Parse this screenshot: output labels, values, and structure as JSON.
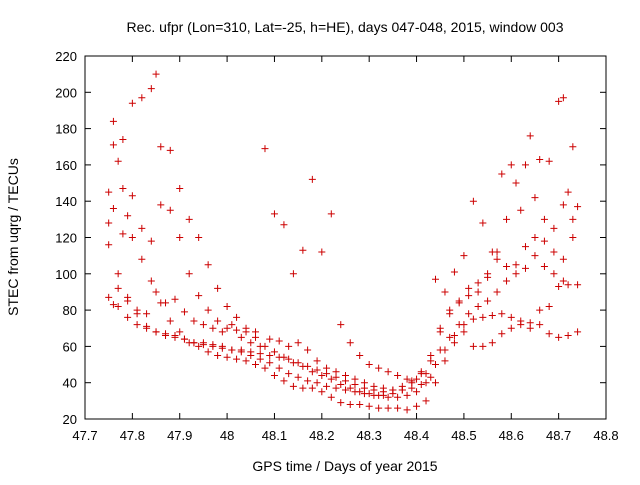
{
  "chart_data": {
    "type": "scatter",
    "title": "Rec. ufpr (Lon=310, Lat=-25, h=HE), days 047-048, 2015, window 003",
    "xlabel": "GPS time / Days of year 2015",
    "ylabel": "STEC from uqrg / TECUs",
    "xlim": [
      47.7,
      48.8
    ],
    "ylim": [
      20,
      220
    ],
    "xticks": [
      "47.7",
      "47.8",
      "47.9",
      "48",
      "48.1",
      "48.2",
      "48.3",
      "48.4",
      "48.5",
      "48.6",
      "48.7",
      "48.8"
    ],
    "yticks": [
      "20",
      "40",
      "60",
      "80",
      "100",
      "120",
      "140",
      "160",
      "180",
      "200",
      "220"
    ],
    "grid": false,
    "marker": "+",
    "color": "#cc0000",
    "series": [
      {
        "points": [
          [
            47.75,
            145
          ],
          [
            47.76,
            171
          ],
          [
            47.77,
            162
          ],
          [
            47.78,
            147
          ],
          [
            47.79,
            132
          ],
          [
            47.8,
            120
          ],
          [
            47.82,
            108
          ],
          [
            47.84,
            96
          ],
          [
            47.86,
            84
          ],
          [
            47.88,
            74
          ],
          [
            47.9,
            68
          ],
          [
            47.92,
            62
          ],
          [
            47.94,
            60
          ],
          [
            47.96,
            57
          ],
          [
            47.98,
            55
          ],
          [
            48.0,
            54
          ],
          [
            48.02,
            53
          ],
          [
            48.04,
            52
          ],
          [
            48.06,
            50
          ],
          [
            48.08,
            48
          ],
          [
            48.1,
            44
          ],
          [
            48.12,
            41
          ],
          [
            48.14,
            38
          ],
          [
            48.16,
            37
          ],
          [
            48.18,
            37
          ],
          [
            48.2,
            35
          ],
          [
            48.22,
            32
          ],
          [
            48.24,
            29
          ],
          [
            48.26,
            28
          ],
          [
            48.28,
            28
          ],
          [
            48.3,
            27
          ],
          [
            48.32,
            26
          ],
          [
            48.34,
            26
          ],
          [
            48.36,
            26
          ],
          [
            48.38,
            25
          ],
          [
            48.4,
            27
          ],
          [
            48.42,
            30
          ],
          [
            48.44,
            40
          ],
          [
            48.46,
            52
          ],
          [
            48.48,
            62
          ],
          [
            48.5,
            68
          ],
          [
            48.52,
            60
          ],
          [
            48.54,
            60
          ],
          [
            48.56,
            62
          ],
          [
            48.58,
            67
          ],
          [
            48.6,
            70
          ],
          [
            48.62,
            72
          ],
          [
            48.64,
            70
          ],
          [
            48.66,
            72
          ],
          [
            48.68,
            67
          ],
          [
            48.7,
            65
          ],
          [
            48.72,
            66
          ],
          [
            48.74,
            68
          ],
          [
            47.75,
            128
          ],
          [
            47.76,
            184
          ],
          [
            47.78,
            174
          ],
          [
            47.8,
            194
          ],
          [
            47.82,
            197
          ],
          [
            47.84,
            202
          ],
          [
            47.85,
            210
          ],
          [
            47.86,
            170
          ],
          [
            47.88,
            168
          ],
          [
            47.9,
            147
          ],
          [
            47.92,
            130
          ],
          [
            47.94,
            120
          ],
          [
            47.96,
            105
          ],
          [
            47.98,
            92
          ],
          [
            48.0,
            82
          ],
          [
            48.02,
            76
          ],
          [
            48.04,
            70
          ],
          [
            48.06,
            65
          ],
          [
            48.08,
            60
          ],
          [
            48.1,
            57
          ],
          [
            48.12,
            54
          ],
          [
            48.14,
            51
          ],
          [
            48.16,
            49
          ],
          [
            48.18,
            46
          ],
          [
            48.2,
            44
          ],
          [
            48.22,
            42
          ],
          [
            48.24,
            39
          ],
          [
            48.26,
            37
          ],
          [
            48.28,
            35
          ],
          [
            48.3,
            34
          ],
          [
            48.32,
            33
          ],
          [
            48.34,
            32
          ],
          [
            48.36,
            32
          ],
          [
            48.38,
            33
          ],
          [
            48.4,
            35
          ],
          [
            48.42,
            40
          ],
          [
            48.44,
            50
          ],
          [
            48.46,
            58
          ],
          [
            48.48,
            66
          ],
          [
            48.5,
            72
          ],
          [
            48.52,
            75
          ],
          [
            48.54,
            76
          ],
          [
            48.56,
            77
          ],
          [
            48.58,
            78
          ],
          [
            48.6,
            76
          ],
          [
            48.62,
            74
          ],
          [
            48.64,
            73
          ],
          [
            48.66,
            80
          ],
          [
            48.68,
            82
          ],
          [
            48.7,
            93
          ],
          [
            48.72,
            94
          ],
          [
            48.74,
            94
          ],
          [
            47.75,
            116
          ],
          [
            47.77,
            100
          ],
          [
            47.79,
            87
          ],
          [
            47.81,
            78
          ],
          [
            47.83,
            71
          ],
          [
            47.85,
            68
          ],
          [
            47.87,
            66
          ],
          [
            47.89,
            65
          ],
          [
            47.91,
            64
          ],
          [
            47.93,
            62
          ],
          [
            47.95,
            61
          ],
          [
            47.97,
            60
          ],
          [
            47.99,
            59
          ],
          [
            48.01,
            58
          ],
          [
            48.03,
            58
          ],
          [
            48.05,
            57
          ],
          [
            48.07,
            56
          ],
          [
            48.09,
            55
          ],
          [
            48.11,
            54
          ],
          [
            48.13,
            53
          ],
          [
            48.15,
            51
          ],
          [
            48.17,
            49
          ],
          [
            48.19,
            47
          ],
          [
            48.21,
            45
          ],
          [
            48.23,
            43
          ],
          [
            48.25,
            41
          ],
          [
            48.27,
            39
          ],
          [
            48.29,
            37
          ],
          [
            48.31,
            36
          ],
          [
            48.33,
            35
          ],
          [
            48.35,
            36
          ],
          [
            48.37,
            38
          ],
          [
            48.39,
            41
          ],
          [
            48.41,
            46
          ],
          [
            48.43,
            52
          ],
          [
            48.45,
            58
          ],
          [
            48.47,
            65
          ],
          [
            48.49,
            72
          ],
          [
            48.51,
            78
          ],
          [
            48.53,
            82
          ],
          [
            48.55,
            85
          ],
          [
            48.57,
            90
          ],
          [
            48.59,
            96
          ],
          [
            48.61,
            105
          ],
          [
            48.63,
            115
          ],
          [
            48.65,
            120
          ],
          [
            48.67,
            118
          ],
          [
            48.69,
            112
          ],
          [
            48.71,
            108
          ],
          [
            48.73,
            120
          ],
          [
            47.75,
            87
          ],
          [
            47.76,
            83
          ],
          [
            47.77,
            82
          ],
          [
            47.79,
            76
          ],
          [
            47.81,
            72
          ],
          [
            47.83,
            70
          ],
          [
            47.85,
            68
          ],
          [
            47.87,
            67
          ],
          [
            47.89,
            66
          ],
          [
            47.91,
            64
          ],
          [
            47.93,
            62
          ],
          [
            47.95,
            62
          ],
          [
            47.97,
            61
          ],
          [
            47.99,
            60
          ],
          [
            48.01,
            58
          ],
          [
            48.03,
            57
          ],
          [
            48.05,
            55
          ],
          [
            48.07,
            53
          ],
          [
            48.09,
            51
          ],
          [
            48.11,
            48
          ],
          [
            48.13,
            45
          ],
          [
            48.15,
            43
          ],
          [
            48.17,
            41
          ],
          [
            48.19,
            40
          ],
          [
            48.21,
            38
          ],
          [
            48.23,
            37
          ],
          [
            48.25,
            36
          ],
          [
            48.27,
            35
          ],
          [
            48.29,
            34
          ],
          [
            48.31,
            33
          ],
          [
            48.33,
            33
          ],
          [
            48.35,
            34
          ],
          [
            48.37,
            36
          ],
          [
            48.39,
            40
          ],
          [
            48.41,
            45
          ],
          [
            48.43,
            55
          ],
          [
            48.45,
            68
          ],
          [
            48.47,
            78
          ],
          [
            48.49,
            85
          ],
          [
            48.51,
            88
          ],
          [
            48.53,
            90
          ],
          [
            48.55,
            98
          ],
          [
            48.57,
            112
          ],
          [
            48.59,
            130
          ],
          [
            48.61,
            150
          ],
          [
            48.63,
            160
          ],
          [
            48.65,
            142
          ],
          [
            48.67,
            130
          ],
          [
            48.69,
            125
          ],
          [
            48.71,
            138
          ],
          [
            48.73,
            170
          ],
          [
            47.76,
            136
          ],
          [
            47.78,
            122
          ],
          [
            47.8,
            143
          ],
          [
            47.82,
            125
          ],
          [
            47.84,
            118
          ],
          [
            47.86,
            138
          ],
          [
            47.88,
            135
          ],
          [
            47.9,
            120
          ],
          [
            47.92,
            100
          ],
          [
            47.94,
            88
          ],
          [
            47.96,
            80
          ],
          [
            47.98,
            74
          ],
          [
            48.0,
            70
          ],
          [
            48.02,
            69
          ],
          [
            48.04,
            68
          ],
          [
            48.06,
            68
          ],
          [
            48.08,
            169
          ],
          [
            48.1,
            133
          ],
          [
            48.12,
            127
          ],
          [
            48.14,
            100
          ],
          [
            48.16,
            113
          ],
          [
            48.18,
            152
          ],
          [
            48.2,
            112
          ],
          [
            48.22,
            133
          ],
          [
            48.24,
            72
          ],
          [
            48.26,
            62
          ],
          [
            48.28,
            55
          ],
          [
            48.3,
            50
          ],
          [
            48.32,
            48
          ],
          [
            48.34,
            46
          ],
          [
            48.36,
            44
          ],
          [
            48.38,
            42
          ],
          [
            48.4,
            42
          ],
          [
            48.42,
            45
          ],
          [
            48.44,
            97
          ],
          [
            48.46,
            90
          ],
          [
            48.48,
            101
          ],
          [
            48.5,
            110
          ],
          [
            48.52,
            140
          ],
          [
            48.54,
            128
          ],
          [
            48.56,
            112
          ],
          [
            48.58,
            155
          ],
          [
            48.6,
            160
          ],
          [
            48.62,
            135
          ],
          [
            48.64,
            176
          ],
          [
            48.66,
            163
          ],
          [
            48.68,
            162
          ],
          [
            48.7,
            195
          ],
          [
            48.71,
            197
          ],
          [
            48.72,
            145
          ],
          [
            48.74,
            137
          ],
          [
            47.77,
            92
          ],
          [
            47.79,
            85
          ],
          [
            47.81,
            80
          ],
          [
            47.83,
            78
          ],
          [
            47.85,
            90
          ],
          [
            47.87,
            84
          ],
          [
            47.89,
            86
          ],
          [
            47.91,
            79
          ],
          [
            47.93,
            74
          ],
          [
            47.95,
            72
          ],
          [
            47.97,
            70
          ],
          [
            47.99,
            68
          ],
          [
            48.01,
            72
          ],
          [
            48.03,
            65
          ],
          [
            48.05,
            62
          ],
          [
            48.07,
            60
          ],
          [
            48.09,
            64
          ],
          [
            48.11,
            63
          ],
          [
            48.13,
            60
          ],
          [
            48.15,
            62
          ],
          [
            48.17,
            58
          ],
          [
            48.19,
            52
          ],
          [
            48.21,
            48
          ],
          [
            48.23,
            46
          ],
          [
            48.25,
            44
          ],
          [
            48.27,
            42
          ],
          [
            48.29,
            40
          ],
          [
            48.31,
            38
          ],
          [
            48.33,
            37
          ],
          [
            48.35,
            36
          ],
          [
            48.37,
            36
          ],
          [
            48.39,
            37
          ],
          [
            48.41,
            39
          ],
          [
            48.43,
            43
          ],
          [
            48.45,
            70
          ],
          [
            48.47,
            80
          ],
          [
            48.49,
            84
          ],
          [
            48.51,
            92
          ],
          [
            48.53,
            95
          ],
          [
            48.55,
            100
          ],
          [
            48.57,
            108
          ],
          [
            48.59,
            104
          ],
          [
            48.61,
            100
          ],
          [
            48.63,
            103
          ],
          [
            48.65,
            110
          ],
          [
            48.67,
            104
          ],
          [
            48.69,
            100
          ],
          [
            48.71,
            96
          ],
          [
            48.73,
            130
          ]
        ]
      }
    ]
  }
}
